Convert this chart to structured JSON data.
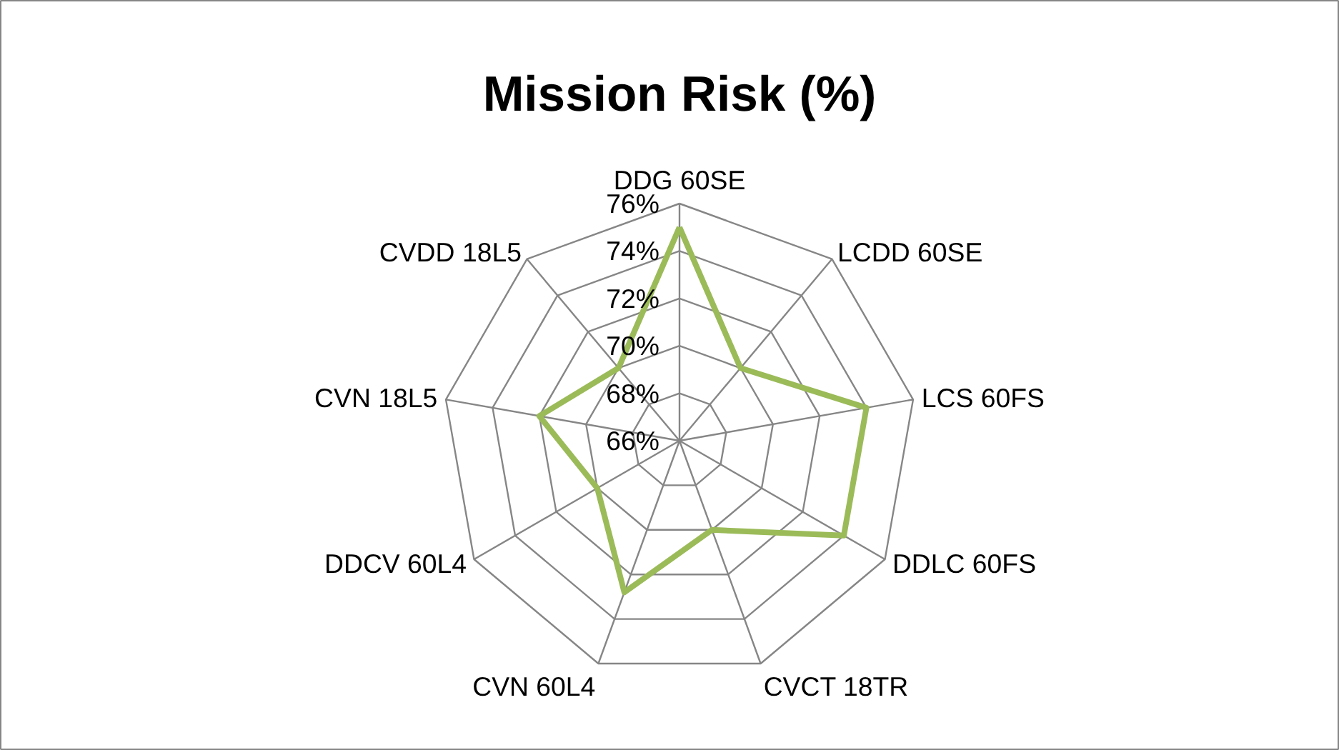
{
  "chart_data": {
    "type": "radar",
    "title": "Mission Risk (%)",
    "categories": [
      "DDG 60SE",
      "LCDD 60SE",
      "LCS 60FS",
      "DDLC 60FS",
      "CVCT 18TR",
      "CVN 60L4",
      "DDCV 60L4",
      "CVN 18L5",
      "CVDD 18L5"
    ],
    "series": [
      {
        "color": "#9bbb59",
        "values": [
          75,
          70,
          74,
          74,
          70,
          72.8,
          70,
          72,
          70
        ]
      }
    ],
    "ylim": [
      66,
      76
    ],
    "yticks": [
      {
        "value": 66,
        "label": "66%"
      },
      {
        "value": 68,
        "label": "68%"
      },
      {
        "value": 70,
        "label": "70%"
      },
      {
        "value": 72,
        "label": "72%"
      },
      {
        "value": 74,
        "label": "74%"
      },
      {
        "value": 76,
        "label": "76%"
      }
    ],
    "grid": true
  }
}
